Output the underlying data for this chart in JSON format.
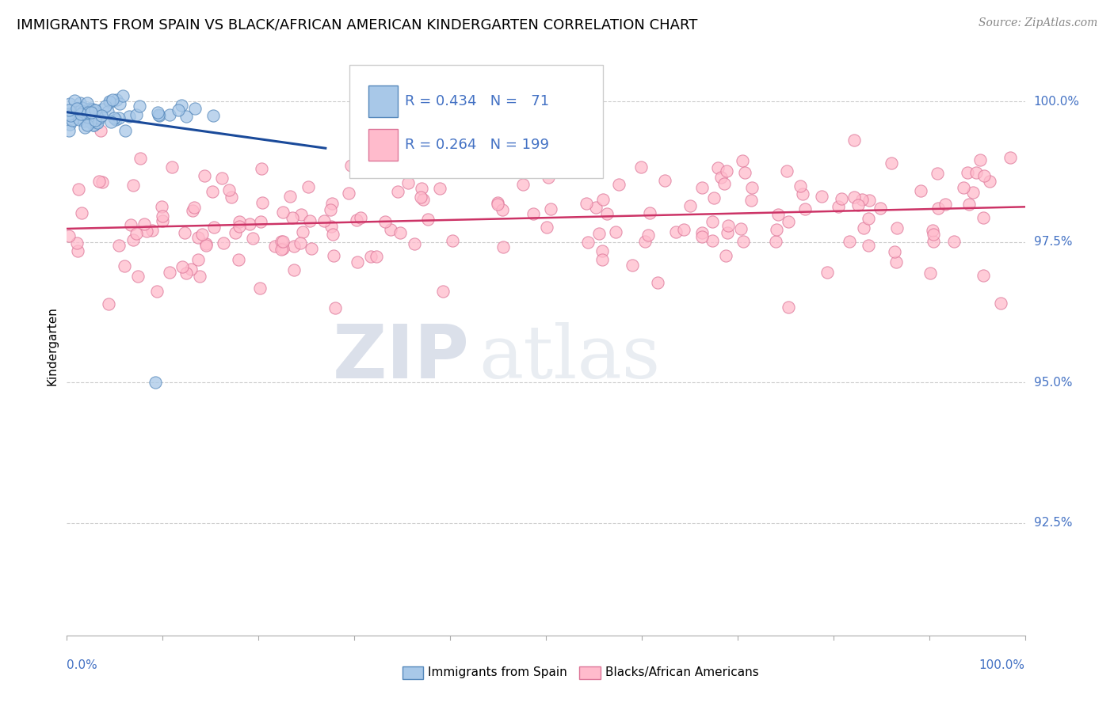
{
  "title": "IMMIGRANTS FROM SPAIN VS BLACK/AFRICAN AMERICAN KINDERGARTEN CORRELATION CHART",
  "source": "Source: ZipAtlas.com",
  "ylabel": "Kindergarten",
  "y_tick_values": [
    0.925,
    0.95,
    0.975,
    1.0
  ],
  "y_tick_labels": [
    "92.5%",
    "95.0%",
    "97.5%",
    "100.0%"
  ],
  "x_lim": [
    0.0,
    1.0
  ],
  "y_lim": [
    0.905,
    1.008
  ],
  "legend_label_blue": "Immigrants from Spain",
  "legend_label_pink": "Blacks/African Americans",
  "blue_color_face": "#a8c8e8",
  "blue_color_edge": "#5588bb",
  "pink_color_face": "#ffbbcc",
  "pink_color_edge": "#dd7799",
  "trend_blue_color": "#1a4a9a",
  "trend_pink_color": "#cc3366",
  "watermark_zip": "ZIP",
  "watermark_atlas": "atlas",
  "grid_color": "#cccccc",
  "title_fontsize": 13,
  "source_fontsize": 10,
  "tick_label_fontsize": 11,
  "legend_fontsize": 13
}
